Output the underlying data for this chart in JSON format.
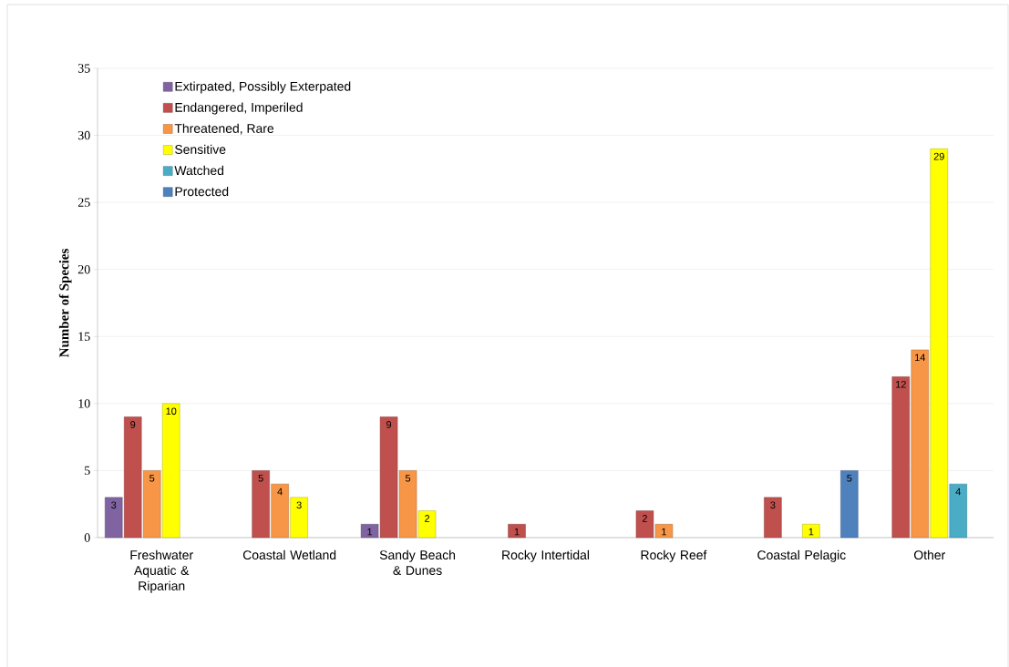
{
  "chart_data": {
    "type": "bar",
    "ylabel": "Number of Species",
    "categories": [
      "Freshwater Aquatic & Riparian",
      "Coastal Wetland",
      "Sandy Beach & Dunes",
      "Rocky Intertidal",
      "Rocky Reef",
      "Coastal Pelagic",
      "Other"
    ],
    "series": [
      {
        "name": "Extirpated, Possibly Exterpated",
        "color": "#8064a2",
        "values": [
          3,
          null,
          1,
          null,
          null,
          null,
          null
        ]
      },
      {
        "name": "Endangered, Imperiled",
        "color": "#c0504d",
        "values": [
          9,
          5,
          9,
          1,
          2,
          3,
          12
        ]
      },
      {
        "name": "Threatened, Rare",
        "color": "#f79646",
        "values": [
          5,
          4,
          5,
          null,
          1,
          null,
          14
        ]
      },
      {
        "name": "Sensitive",
        "color": "#ffff00",
        "values": [
          10,
          3,
          2,
          null,
          null,
          1,
          29
        ]
      },
      {
        "name": "Watched",
        "color": "#4bacc6",
        "values": [
          null,
          null,
          null,
          null,
          null,
          null,
          4
        ]
      },
      {
        "name": "Protected",
        "color": "#4f81bd",
        "values": [
          null,
          null,
          null,
          null,
          null,
          5,
          null
        ]
      }
    ],
    "ylim": [
      0,
      35
    ],
    "yticks": [
      0,
      5,
      10,
      15,
      20,
      25,
      30,
      35
    ],
    "grid": "y",
    "legend": "top left",
    "data_labels": true
  }
}
